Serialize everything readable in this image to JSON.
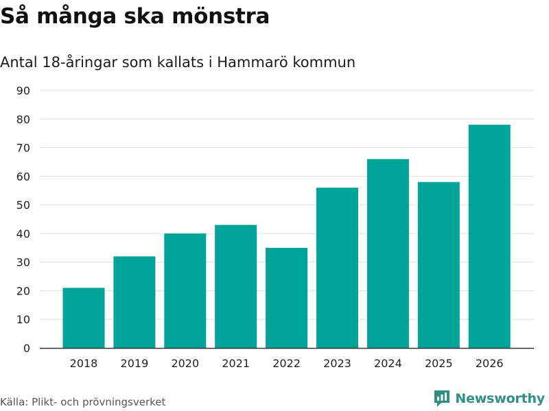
{
  "header": {
    "title": "Så många ska mönstra",
    "subtitle": "Antal 18-åringar som kallats i Hammarö kommun"
  },
  "footer": {
    "source": "Källa: Plikt- och prövningsverket",
    "brand": "Newsworthy",
    "brand_icon": "newsworthy-logo-icon"
  },
  "colors": {
    "bar": "#00a499",
    "grid": "#dddddd",
    "axis": "#333333",
    "brand": "#2c8f88"
  },
  "chart_data": {
    "type": "bar",
    "title": "Så många ska mönstra",
    "subtitle": "Antal 18-åringar som kallats i Hammarö kommun",
    "xlabel": "",
    "ylabel": "",
    "categories": [
      "2018",
      "2019",
      "2020",
      "2021",
      "2022",
      "2023",
      "2024",
      "2025",
      "2026"
    ],
    "values": [
      21,
      32,
      40,
      43,
      35,
      56,
      66,
      58,
      78
    ],
    "ylim": [
      0,
      90
    ],
    "yticks": [
      0,
      10,
      20,
      30,
      40,
      50,
      60,
      70,
      80,
      90
    ],
    "grid": true,
    "legend": "none"
  }
}
